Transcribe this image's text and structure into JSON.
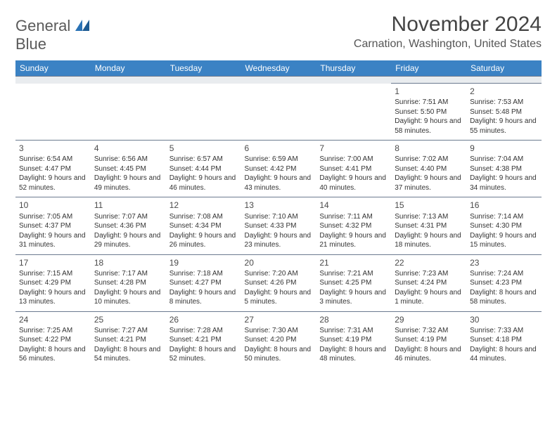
{
  "brand": {
    "line1": "General",
    "line2": "Blue"
  },
  "colors": {
    "header_bg": "#3b82c4",
    "header_text": "#ffffff",
    "border": "#6b7a8f",
    "spacer_bg": "#e9ecef",
    "text": "#333333",
    "logo_gray": "#5a5a5a",
    "logo_blue": "#2a72b5"
  },
  "title": "November 2024",
  "location": "Carnation, Washington, United States",
  "weekdays": [
    "Sunday",
    "Monday",
    "Tuesday",
    "Wednesday",
    "Thursday",
    "Friday",
    "Saturday"
  ],
  "weeks": [
    [
      null,
      null,
      null,
      null,
      null,
      {
        "day": "1",
        "sunrise": "Sunrise: 7:51 AM",
        "sunset": "Sunset: 5:50 PM",
        "daylight": "Daylight: 9 hours and 58 minutes."
      },
      {
        "day": "2",
        "sunrise": "Sunrise: 7:53 AM",
        "sunset": "Sunset: 5:48 PM",
        "daylight": "Daylight: 9 hours and 55 minutes."
      }
    ],
    [
      {
        "day": "3",
        "sunrise": "Sunrise: 6:54 AM",
        "sunset": "Sunset: 4:47 PM",
        "daylight": "Daylight: 9 hours and 52 minutes."
      },
      {
        "day": "4",
        "sunrise": "Sunrise: 6:56 AM",
        "sunset": "Sunset: 4:45 PM",
        "daylight": "Daylight: 9 hours and 49 minutes."
      },
      {
        "day": "5",
        "sunrise": "Sunrise: 6:57 AM",
        "sunset": "Sunset: 4:44 PM",
        "daylight": "Daylight: 9 hours and 46 minutes."
      },
      {
        "day": "6",
        "sunrise": "Sunrise: 6:59 AM",
        "sunset": "Sunset: 4:42 PM",
        "daylight": "Daylight: 9 hours and 43 minutes."
      },
      {
        "day": "7",
        "sunrise": "Sunrise: 7:00 AM",
        "sunset": "Sunset: 4:41 PM",
        "daylight": "Daylight: 9 hours and 40 minutes."
      },
      {
        "day": "8",
        "sunrise": "Sunrise: 7:02 AM",
        "sunset": "Sunset: 4:40 PM",
        "daylight": "Daylight: 9 hours and 37 minutes."
      },
      {
        "day": "9",
        "sunrise": "Sunrise: 7:04 AM",
        "sunset": "Sunset: 4:38 PM",
        "daylight": "Daylight: 9 hours and 34 minutes."
      }
    ],
    [
      {
        "day": "10",
        "sunrise": "Sunrise: 7:05 AM",
        "sunset": "Sunset: 4:37 PM",
        "daylight": "Daylight: 9 hours and 31 minutes."
      },
      {
        "day": "11",
        "sunrise": "Sunrise: 7:07 AM",
        "sunset": "Sunset: 4:36 PM",
        "daylight": "Daylight: 9 hours and 29 minutes."
      },
      {
        "day": "12",
        "sunrise": "Sunrise: 7:08 AM",
        "sunset": "Sunset: 4:34 PM",
        "daylight": "Daylight: 9 hours and 26 minutes."
      },
      {
        "day": "13",
        "sunrise": "Sunrise: 7:10 AM",
        "sunset": "Sunset: 4:33 PM",
        "daylight": "Daylight: 9 hours and 23 minutes."
      },
      {
        "day": "14",
        "sunrise": "Sunrise: 7:11 AM",
        "sunset": "Sunset: 4:32 PM",
        "daylight": "Daylight: 9 hours and 21 minutes."
      },
      {
        "day": "15",
        "sunrise": "Sunrise: 7:13 AM",
        "sunset": "Sunset: 4:31 PM",
        "daylight": "Daylight: 9 hours and 18 minutes."
      },
      {
        "day": "16",
        "sunrise": "Sunrise: 7:14 AM",
        "sunset": "Sunset: 4:30 PM",
        "daylight": "Daylight: 9 hours and 15 minutes."
      }
    ],
    [
      {
        "day": "17",
        "sunrise": "Sunrise: 7:15 AM",
        "sunset": "Sunset: 4:29 PM",
        "daylight": "Daylight: 9 hours and 13 minutes."
      },
      {
        "day": "18",
        "sunrise": "Sunrise: 7:17 AM",
        "sunset": "Sunset: 4:28 PM",
        "daylight": "Daylight: 9 hours and 10 minutes."
      },
      {
        "day": "19",
        "sunrise": "Sunrise: 7:18 AM",
        "sunset": "Sunset: 4:27 PM",
        "daylight": "Daylight: 9 hours and 8 minutes."
      },
      {
        "day": "20",
        "sunrise": "Sunrise: 7:20 AM",
        "sunset": "Sunset: 4:26 PM",
        "daylight": "Daylight: 9 hours and 5 minutes."
      },
      {
        "day": "21",
        "sunrise": "Sunrise: 7:21 AM",
        "sunset": "Sunset: 4:25 PM",
        "daylight": "Daylight: 9 hours and 3 minutes."
      },
      {
        "day": "22",
        "sunrise": "Sunrise: 7:23 AM",
        "sunset": "Sunset: 4:24 PM",
        "daylight": "Daylight: 9 hours and 1 minute."
      },
      {
        "day": "23",
        "sunrise": "Sunrise: 7:24 AM",
        "sunset": "Sunset: 4:23 PM",
        "daylight": "Daylight: 8 hours and 58 minutes."
      }
    ],
    [
      {
        "day": "24",
        "sunrise": "Sunrise: 7:25 AM",
        "sunset": "Sunset: 4:22 PM",
        "daylight": "Daylight: 8 hours and 56 minutes."
      },
      {
        "day": "25",
        "sunrise": "Sunrise: 7:27 AM",
        "sunset": "Sunset: 4:21 PM",
        "daylight": "Daylight: 8 hours and 54 minutes."
      },
      {
        "day": "26",
        "sunrise": "Sunrise: 7:28 AM",
        "sunset": "Sunset: 4:21 PM",
        "daylight": "Daylight: 8 hours and 52 minutes."
      },
      {
        "day": "27",
        "sunrise": "Sunrise: 7:30 AM",
        "sunset": "Sunset: 4:20 PM",
        "daylight": "Daylight: 8 hours and 50 minutes."
      },
      {
        "day": "28",
        "sunrise": "Sunrise: 7:31 AM",
        "sunset": "Sunset: 4:19 PM",
        "daylight": "Daylight: 8 hours and 48 minutes."
      },
      {
        "day": "29",
        "sunrise": "Sunrise: 7:32 AM",
        "sunset": "Sunset: 4:19 PM",
        "daylight": "Daylight: 8 hours and 46 minutes."
      },
      {
        "day": "30",
        "sunrise": "Sunrise: 7:33 AM",
        "sunset": "Sunset: 4:18 PM",
        "daylight": "Daylight: 8 hours and 44 minutes."
      }
    ]
  ]
}
